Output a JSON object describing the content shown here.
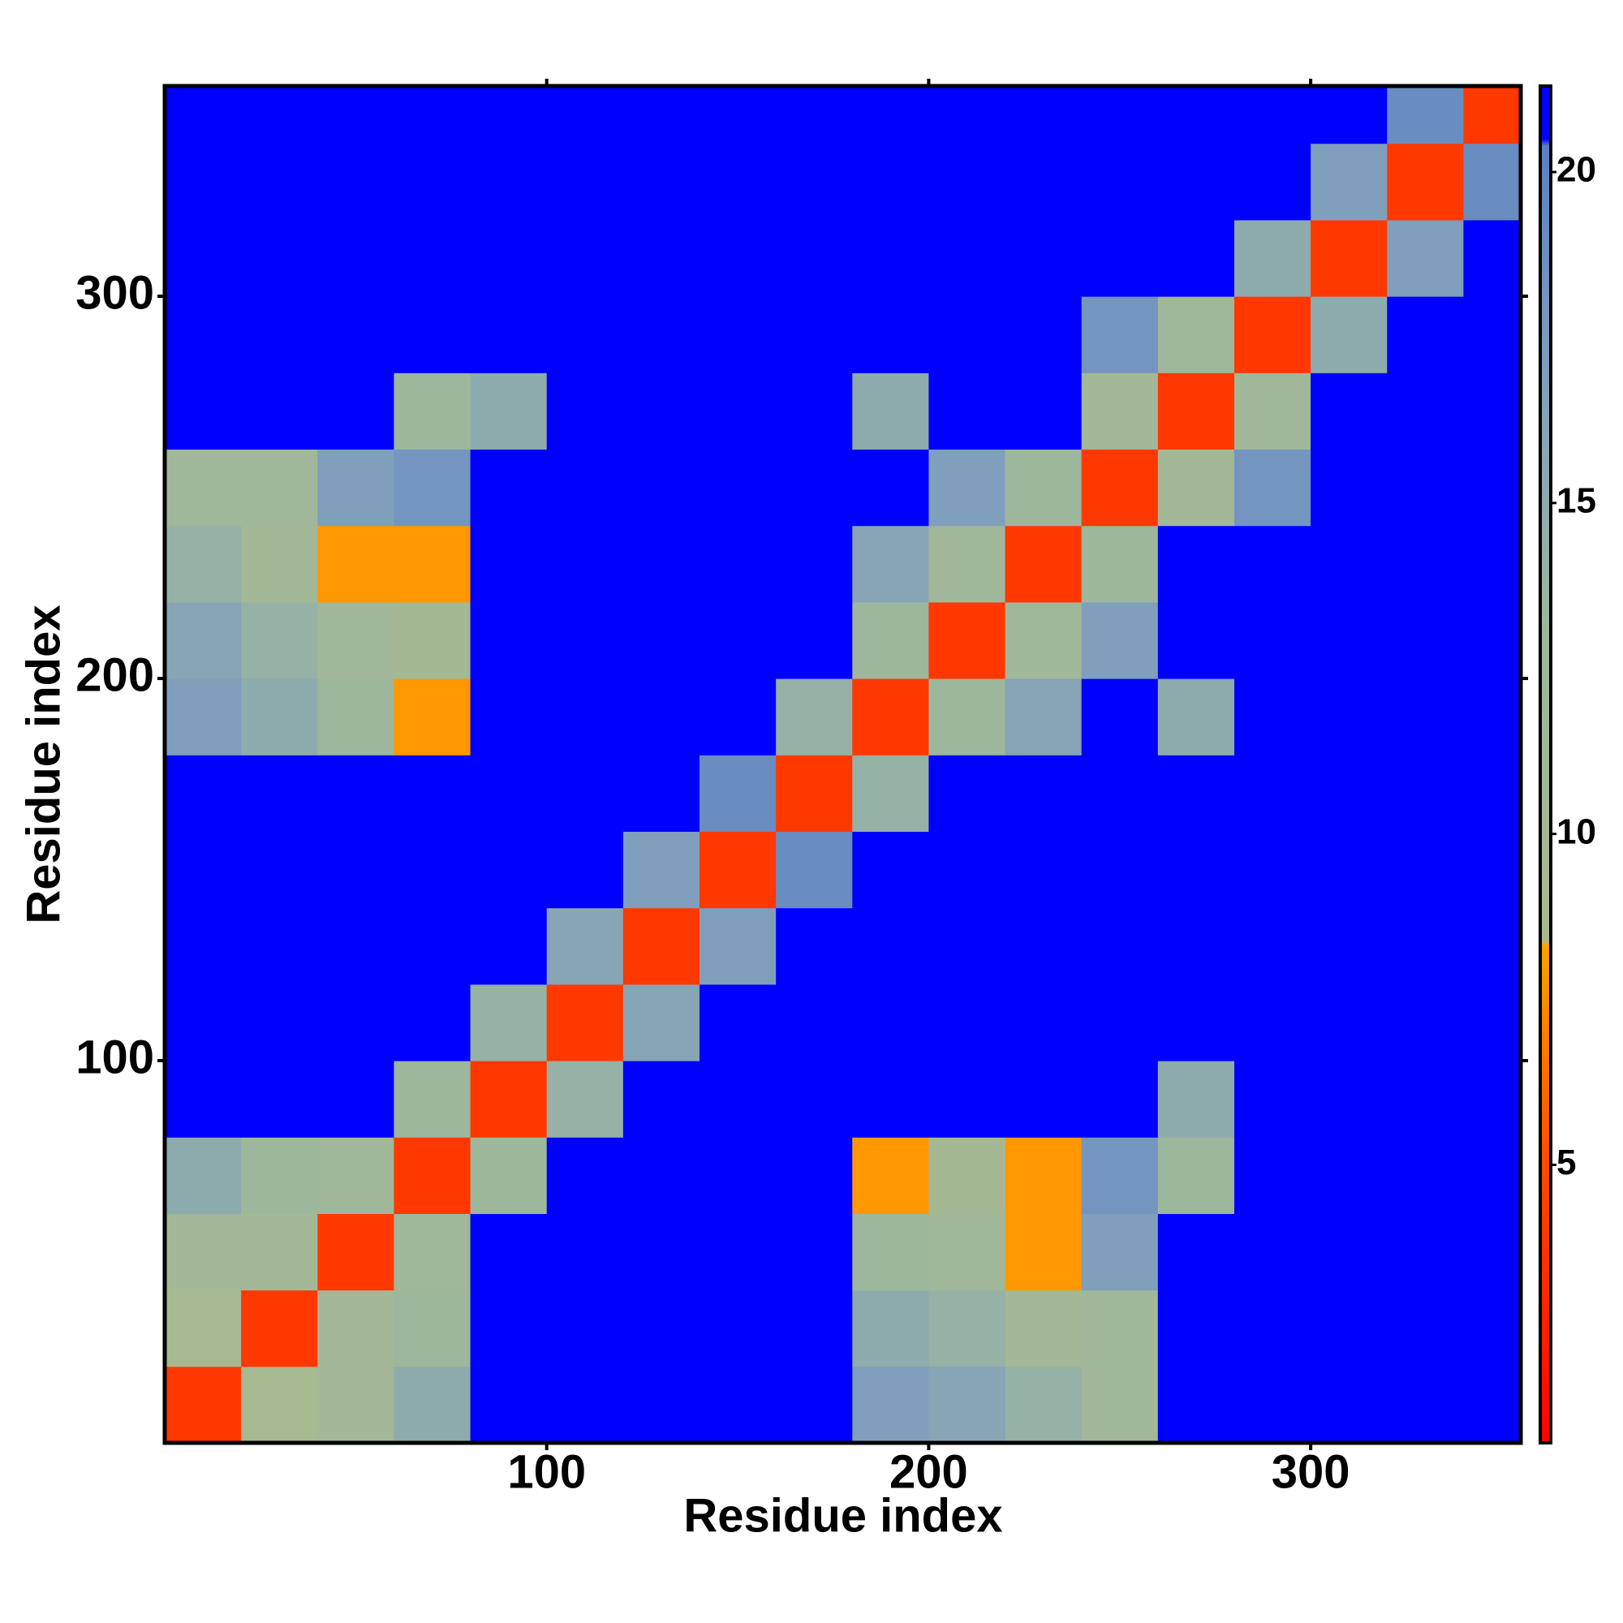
{
  "chart_data": {
    "type": "heatmap",
    "x_title": "Residue index",
    "y_title": "Residue index",
    "xlim": [
      0,
      355
    ],
    "ylim": [
      0,
      355
    ],
    "xticks": [
      100,
      200,
      300
    ],
    "yticks": [
      100,
      200,
      300
    ],
    "clim": [
      0.8,
      21.3
    ],
    "cticks": [
      5,
      10,
      15,
      20
    ],
    "colorscale": [
      [
        0.8,
        "#ff0000"
      ],
      [
        5,
        "#ff4a00"
      ],
      [
        8.3,
        "#ffa000"
      ],
      [
        8.4,
        "#a9b98f"
      ],
      [
        13,
        "#9db79d"
      ],
      [
        17,
        "#7f9fbd"
      ],
      [
        20.4,
        "#5a7ec4"
      ],
      [
        20.5,
        "#0000ff"
      ],
      [
        21.3,
        "#0000ff"
      ]
    ],
    "x_bins": [
      0,
      20,
      40,
      60,
      80,
      100,
      120,
      140,
      160,
      180,
      200,
      220,
      240,
      260,
      280,
      300,
      320,
      340,
      355
    ],
    "y_bins": [
      0,
      20,
      40,
      60,
      80,
      100,
      120,
      140,
      160,
      180,
      200,
      220,
      240,
      260,
      280,
      300,
      320,
      340,
      355
    ],
    "values": [
      [
        4,
        9,
        11,
        15,
        21,
        21,
        21,
        21,
        21,
        17,
        16,
        14,
        12,
        21,
        21,
        21,
        21,
        21
      ],
      [
        9,
        4,
        11,
        13,
        21,
        21,
        21,
        21,
        21,
        15,
        14,
        11,
        12,
        21,
        21,
        21,
        21,
        21
      ],
      [
        11,
        11,
        4,
        12,
        21,
        21,
        21,
        21,
        21,
        13,
        12,
        8,
        17,
        21,
        21,
        21,
        21,
        21
      ],
      [
        15,
        13,
        12,
        4,
        13,
        21,
        21,
        21,
        21,
        8,
        10,
        8,
        18,
        13,
        21,
        21,
        21,
        21
      ],
      [
        21,
        21,
        21,
        13,
        4,
        14,
        21,
        21,
        21,
        21,
        21,
        21,
        21,
        15,
        21,
        21,
        21,
        21
      ],
      [
        21,
        21,
        21,
        21,
        14,
        4,
        16,
        21,
        21,
        21,
        21,
        21,
        21,
        21,
        21,
        21,
        21,
        21
      ],
      [
        21,
        21,
        21,
        21,
        21,
        16,
        4,
        17,
        21,
        21,
        21,
        21,
        21,
        21,
        21,
        21,
        21,
        21
      ],
      [
        21,
        21,
        21,
        21,
        21,
        21,
        17,
        4,
        19,
        21,
        21,
        21,
        21,
        21,
        21,
        21,
        21,
        21
      ],
      [
        21,
        21,
        21,
        21,
        21,
        21,
        21,
        19,
        4,
        14,
        21,
        21,
        21,
        21,
        21,
        21,
        21,
        21
      ],
      [
        17,
        15,
        13,
        8,
        21,
        21,
        21,
        21,
        14,
        4,
        13,
        16,
        21,
        15,
        21,
        21,
        21,
        21
      ],
      [
        16,
        14,
        12,
        10,
        21,
        21,
        21,
        21,
        21,
        13,
        4,
        12,
        17,
        21,
        21,
        21,
        21,
        21
      ],
      [
        14,
        11,
        8,
        8,
        21,
        21,
        21,
        21,
        21,
        16,
        12,
        4,
        13,
        21,
        21,
        21,
        21,
        21
      ],
      [
        12,
        12,
        17,
        18,
        21,
        21,
        21,
        21,
        21,
        21,
        17,
        13,
        4,
        11,
        18,
        21,
        21,
        21
      ],
      [
        21,
        21,
        21,
        13,
        15,
        21,
        21,
        21,
        21,
        15,
        21,
        21,
        11,
        4,
        12,
        21,
        21,
        21
      ],
      [
        21,
        21,
        21,
        21,
        21,
        21,
        21,
        21,
        21,
        21,
        21,
        21,
        18,
        12,
        4,
        15,
        21,
        21
      ],
      [
        21,
        21,
        21,
        21,
        21,
        21,
        21,
        21,
        21,
        21,
        21,
        21,
        21,
        21,
        15,
        4,
        17,
        21
      ],
      [
        21,
        21,
        21,
        21,
        21,
        21,
        21,
        21,
        21,
        21,
        21,
        21,
        21,
        21,
        21,
        17,
        4,
        19
      ],
      [
        21,
        21,
        21,
        21,
        21,
        21,
        21,
        21,
        21,
        21,
        21,
        21,
        21,
        21,
        21,
        21,
        19,
        4
      ]
    ]
  }
}
